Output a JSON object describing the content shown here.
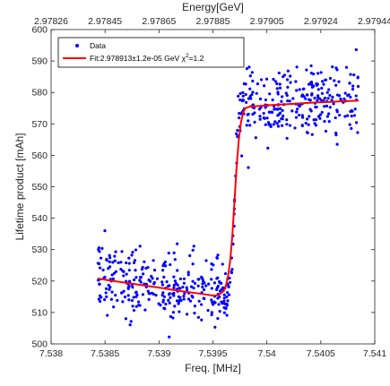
{
  "chart_data": {
    "type": "scatter",
    "title": "",
    "xlabel": "Freq. [MHz]",
    "ylabel": "Lifetime product [mAh]",
    "top_xlabel": "Energy[GeV]",
    "xlim": [
      7.538,
      7.541
    ],
    "ylim": [
      500,
      600
    ],
    "x_ticks": [
      7.538,
      7.5385,
      7.539,
      7.5395,
      7.54,
      7.5405,
      7.541
    ],
    "x_tick_labels": [
      "7.538",
      "7.5385",
      "7.539",
      "7.5395",
      "7.54",
      "7.5405",
      "7.541"
    ],
    "y_ticks": [
      500,
      510,
      520,
      530,
      540,
      550,
      560,
      570,
      580,
      590,
      600
    ],
    "y_tick_labels": [
      "500",
      "510",
      "520",
      "530",
      "540",
      "550",
      "560",
      "570",
      "580",
      "590",
      "600"
    ],
    "top_x_ticks": [
      7.538,
      7.5385,
      7.539,
      7.5395,
      7.54,
      7.5405,
      7.541
    ],
    "top_x_tick_labels": [
      "2.97826",
      "2.97845",
      "2.97865",
      "2.97885",
      "2.97905",
      "2.97924",
      "2.97944"
    ],
    "grid": false,
    "legend_position": "top-left",
    "series": [
      {
        "name": "Data",
        "kind": "scatter",
        "color": "#0000ff",
        "x_range": [
          7.53843,
          7.54085
        ],
        "count": 600,
        "low_level": [
          521,
          515
        ],
        "high_level": [
          575.5,
          577.5
        ],
        "step_at": 7.5397,
        "step_width": 5.5e-05,
        "noise_sd": 5.5
      },
      {
        "name": "Fit:2.978913±1.2e-05 GeV χ²=1.2",
        "kind": "line",
        "color": "#ff0000",
        "x": [
          7.53843,
          7.5386,
          7.5388,
          7.539,
          7.5392,
          7.5394,
          7.5395,
          7.53955,
          7.5396,
          7.53962,
          7.53964,
          7.53966,
          7.53968,
          7.5397,
          7.53972,
          7.53974,
          7.53976,
          7.53978,
          7.5398,
          7.53985,
          7.5399,
          7.54,
          7.5401,
          7.5402,
          7.5403,
          7.5404,
          7.5405,
          7.5406,
          7.5407,
          7.54085
        ],
        "y": [
          520.8,
          519.9,
          518.9,
          517.9,
          516.8,
          515.9,
          515.4,
          515.5,
          516.8,
          518.5,
          521.5,
          526.5,
          534.5,
          545.5,
          556.5,
          565,
          570.5,
          573.5,
          575,
          575.6,
          575.6,
          575.9,
          576.1,
          576.3,
          576.5,
          576.7,
          576.9,
          577.0,
          577.2,
          577.4
        ]
      }
    ]
  },
  "legend": {
    "data_label": "Data",
    "fit_label_prefix": "Fit:2.978913±1.2e-05 GeV χ",
    "fit_label_sup": "2",
    "fit_label_suffix": "=1.2"
  }
}
